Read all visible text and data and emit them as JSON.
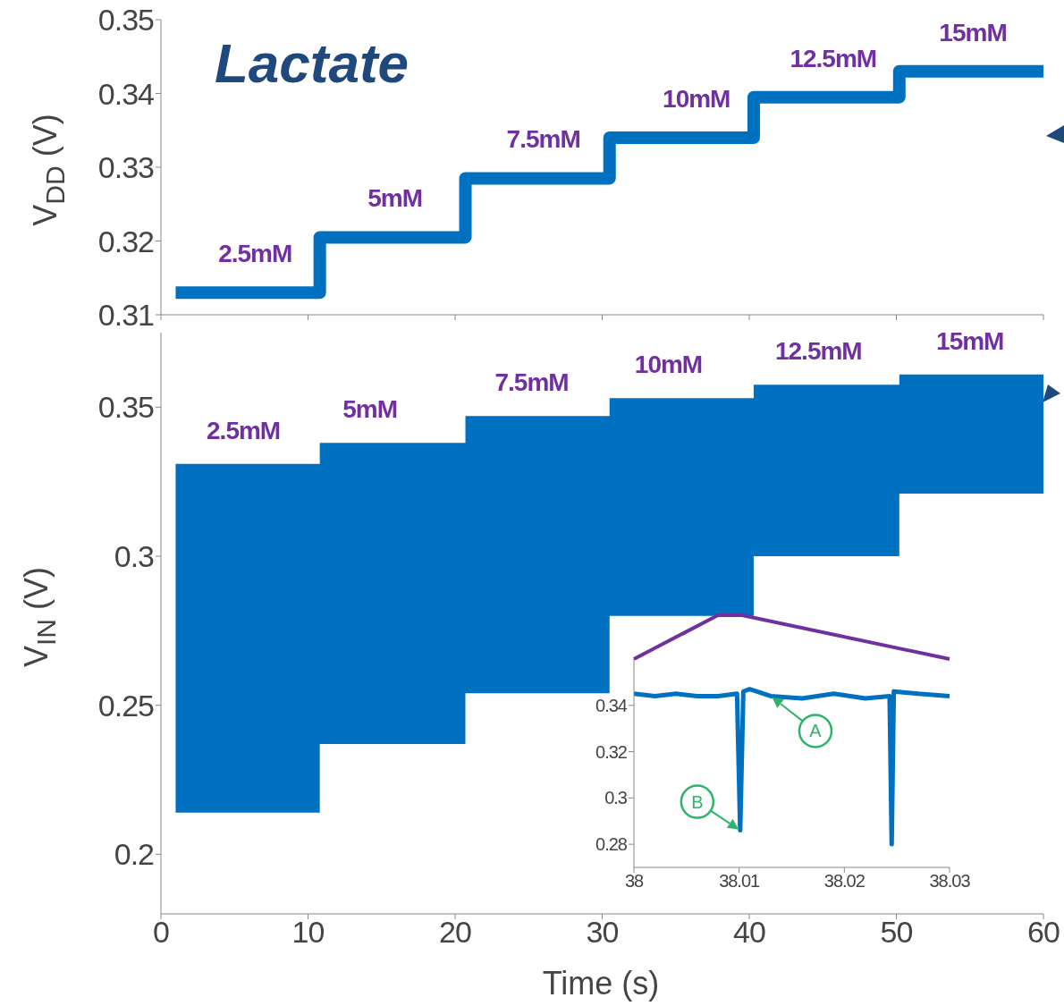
{
  "chart_data": [
    {
      "type": "step",
      "title": "Lactate",
      "ylabel": "V$_{DD}$ (V)",
      "x": [
        1,
        10.8,
        20.7,
        30.5,
        40.3,
        50.2,
        60
      ],
      "values": [
        0.313,
        0.3205,
        0.3285,
        0.334,
        0.3395,
        0.343,
        0.343
      ],
      "color": "#0070c0",
      "xlim": [
        0,
        60
      ],
      "xticks": [
        0,
        10,
        20,
        30,
        40,
        50,
        60
      ],
      "ylim": [
        0.31,
        0.35
      ],
      "yticks": [
        0.31,
        0.32,
        0.33,
        0.34,
        0.35
      ],
      "tick_labels": "y",
      "annotations": [
        {
          "text": "2.5mM",
          "x": 6.4,
          "y": 0.313
        },
        {
          "text": "5mM",
          "x": 15.9,
          "y": 0.3205
        },
        {
          "text": "7.5mM",
          "x": 26,
          "y": 0.3285
        },
        {
          "text": "10mM",
          "x": 36.4,
          "y": 0.334
        },
        {
          "text": "12.5mM",
          "x": 45.7,
          "y": 0.3395
        },
        {
          "text": "15mM",
          "x": 55.2,
          "y": 0.343
        }
      ]
    },
    {
      "type": "area",
      "xlabel": "Time (s)",
      "ylabel": "V$_{IN}$ (V)",
      "x": [
        1,
        10.8,
        10.8,
        20.7,
        20.7,
        30.5,
        30.5,
        40.3,
        40.3,
        50.2,
        50.2,
        60
      ],
      "series": [
        {
          "color": "#0070c0",
          "values": [
            null,
            null,
            null,
            null,
            null,
            null,
            null,
            null,
            null,
            null,
            null,
            null
          ],
          "lower": [
            0.214,
            0.214,
            0.237,
            0.237,
            0.254,
            0.254,
            0.28,
            0.28,
            0.3,
            0.3,
            0.321,
            0.321
          ],
          "upper": [
            0.331,
            0.331,
            0.338,
            0.338,
            0.347,
            0.347,
            0.353,
            0.353,
            0.3575,
            0.3575,
            0.361,
            0.361
          ]
        }
      ],
      "xlim": [
        0,
        60
      ],
      "xticks": [
        0,
        10,
        20,
        30,
        40,
        50,
        60
      ],
      "ylim": [
        0.18,
        0.375
      ],
      "yticks": [
        0.2,
        0.25,
        0.3,
        0.35
      ],
      "annotations": [
        {
          "text": "2.5mM",
          "x": 5.6,
          "y": 0.331
        },
        {
          "text": "5mM",
          "x": 14.2,
          "y": 0.338
        },
        {
          "text": "7.5mM",
          "x": 25.2,
          "y": 0.347
        },
        {
          "text": "10mM",
          "x": 34.5,
          "y": 0.353
        },
        {
          "text": "12.5mM",
          "x": 44.7,
          "y": 0.3575
        },
        {
          "text": "15mM",
          "x": 55,
          "y": 0.361
        }
      ]
    },
    {
      "type": "line",
      "x": [
        38,
        38.002,
        38.004,
        38.006,
        38.008,
        38.0098,
        38.0101,
        38.0104,
        38.011,
        38.013,
        38.016,
        38.019,
        38.022,
        38.0243,
        38.0245,
        38.0247,
        38.027,
        38.03
      ],
      "values": [
        0.345,
        0.344,
        0.345,
        0.344,
        0.344,
        0.345,
        0.286,
        0.346,
        0.347,
        0.344,
        0.343,
        0.345,
        0.343,
        0.344,
        0.28,
        0.346,
        0.345,
        0.344
      ],
      "color": "#0070c0",
      "xlim": [
        38,
        38.03
      ],
      "xticks": [
        38,
        38.01,
        38.02,
        38.03
      ],
      "ylim": [
        0.27,
        0.36
      ],
      "yticks": [
        0.28,
        0.3,
        0.32,
        0.34
      ],
      "annotations": [
        {
          "text": "A",
          "x": 38.013,
          "y": 0.344
        },
        {
          "text": "B",
          "x": 38.0101,
          "y": 0.286
        }
      ]
    }
  ]
}
